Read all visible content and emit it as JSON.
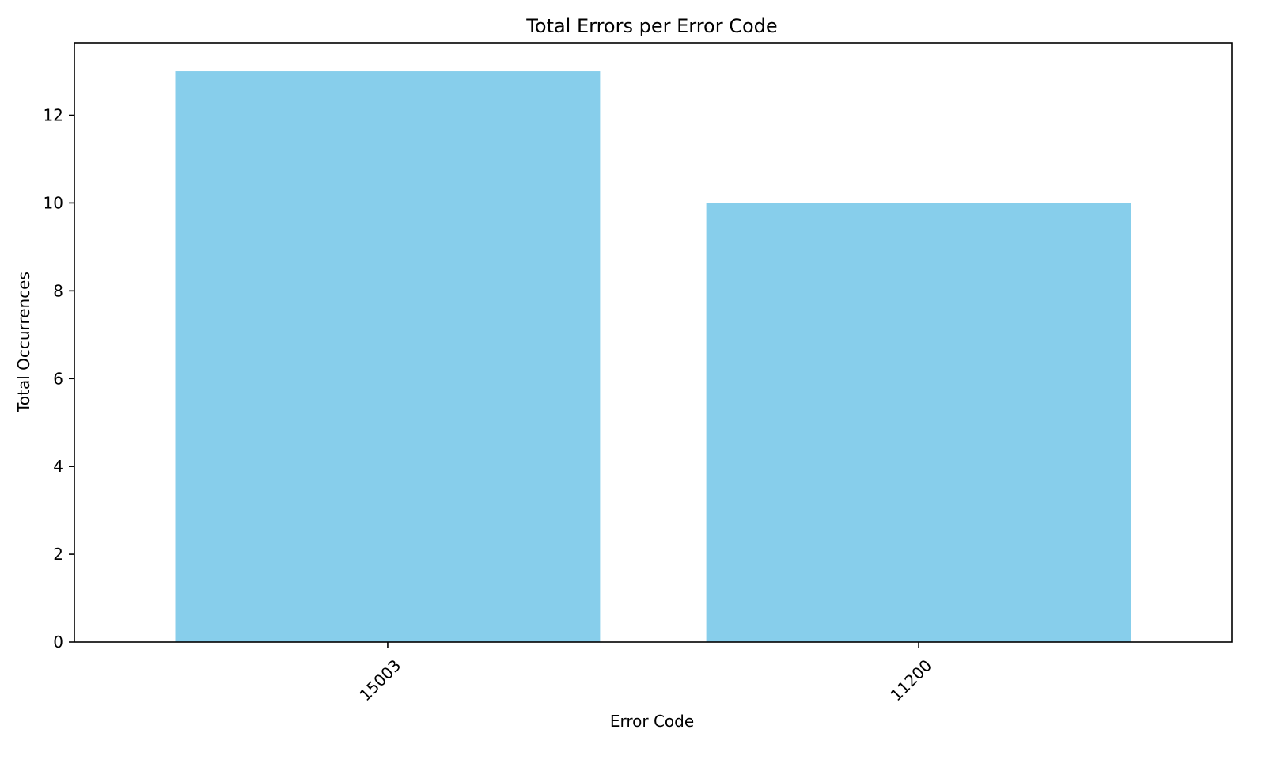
{
  "chart_data": {
    "type": "bar",
    "title": "Total Errors per Error Code",
    "xlabel": "Error Code",
    "ylabel": "Total Occurrences",
    "categories": [
      "15003",
      "11200"
    ],
    "values": [
      13,
      10
    ],
    "ylim": [
      0,
      13.65
    ],
    "yticks": [
      0,
      2,
      4,
      6,
      8,
      10,
      12
    ],
    "x_tick_rotation_deg": 45,
    "bar_color": "#87CEEB",
    "grid": false,
    "legend": "none"
  }
}
